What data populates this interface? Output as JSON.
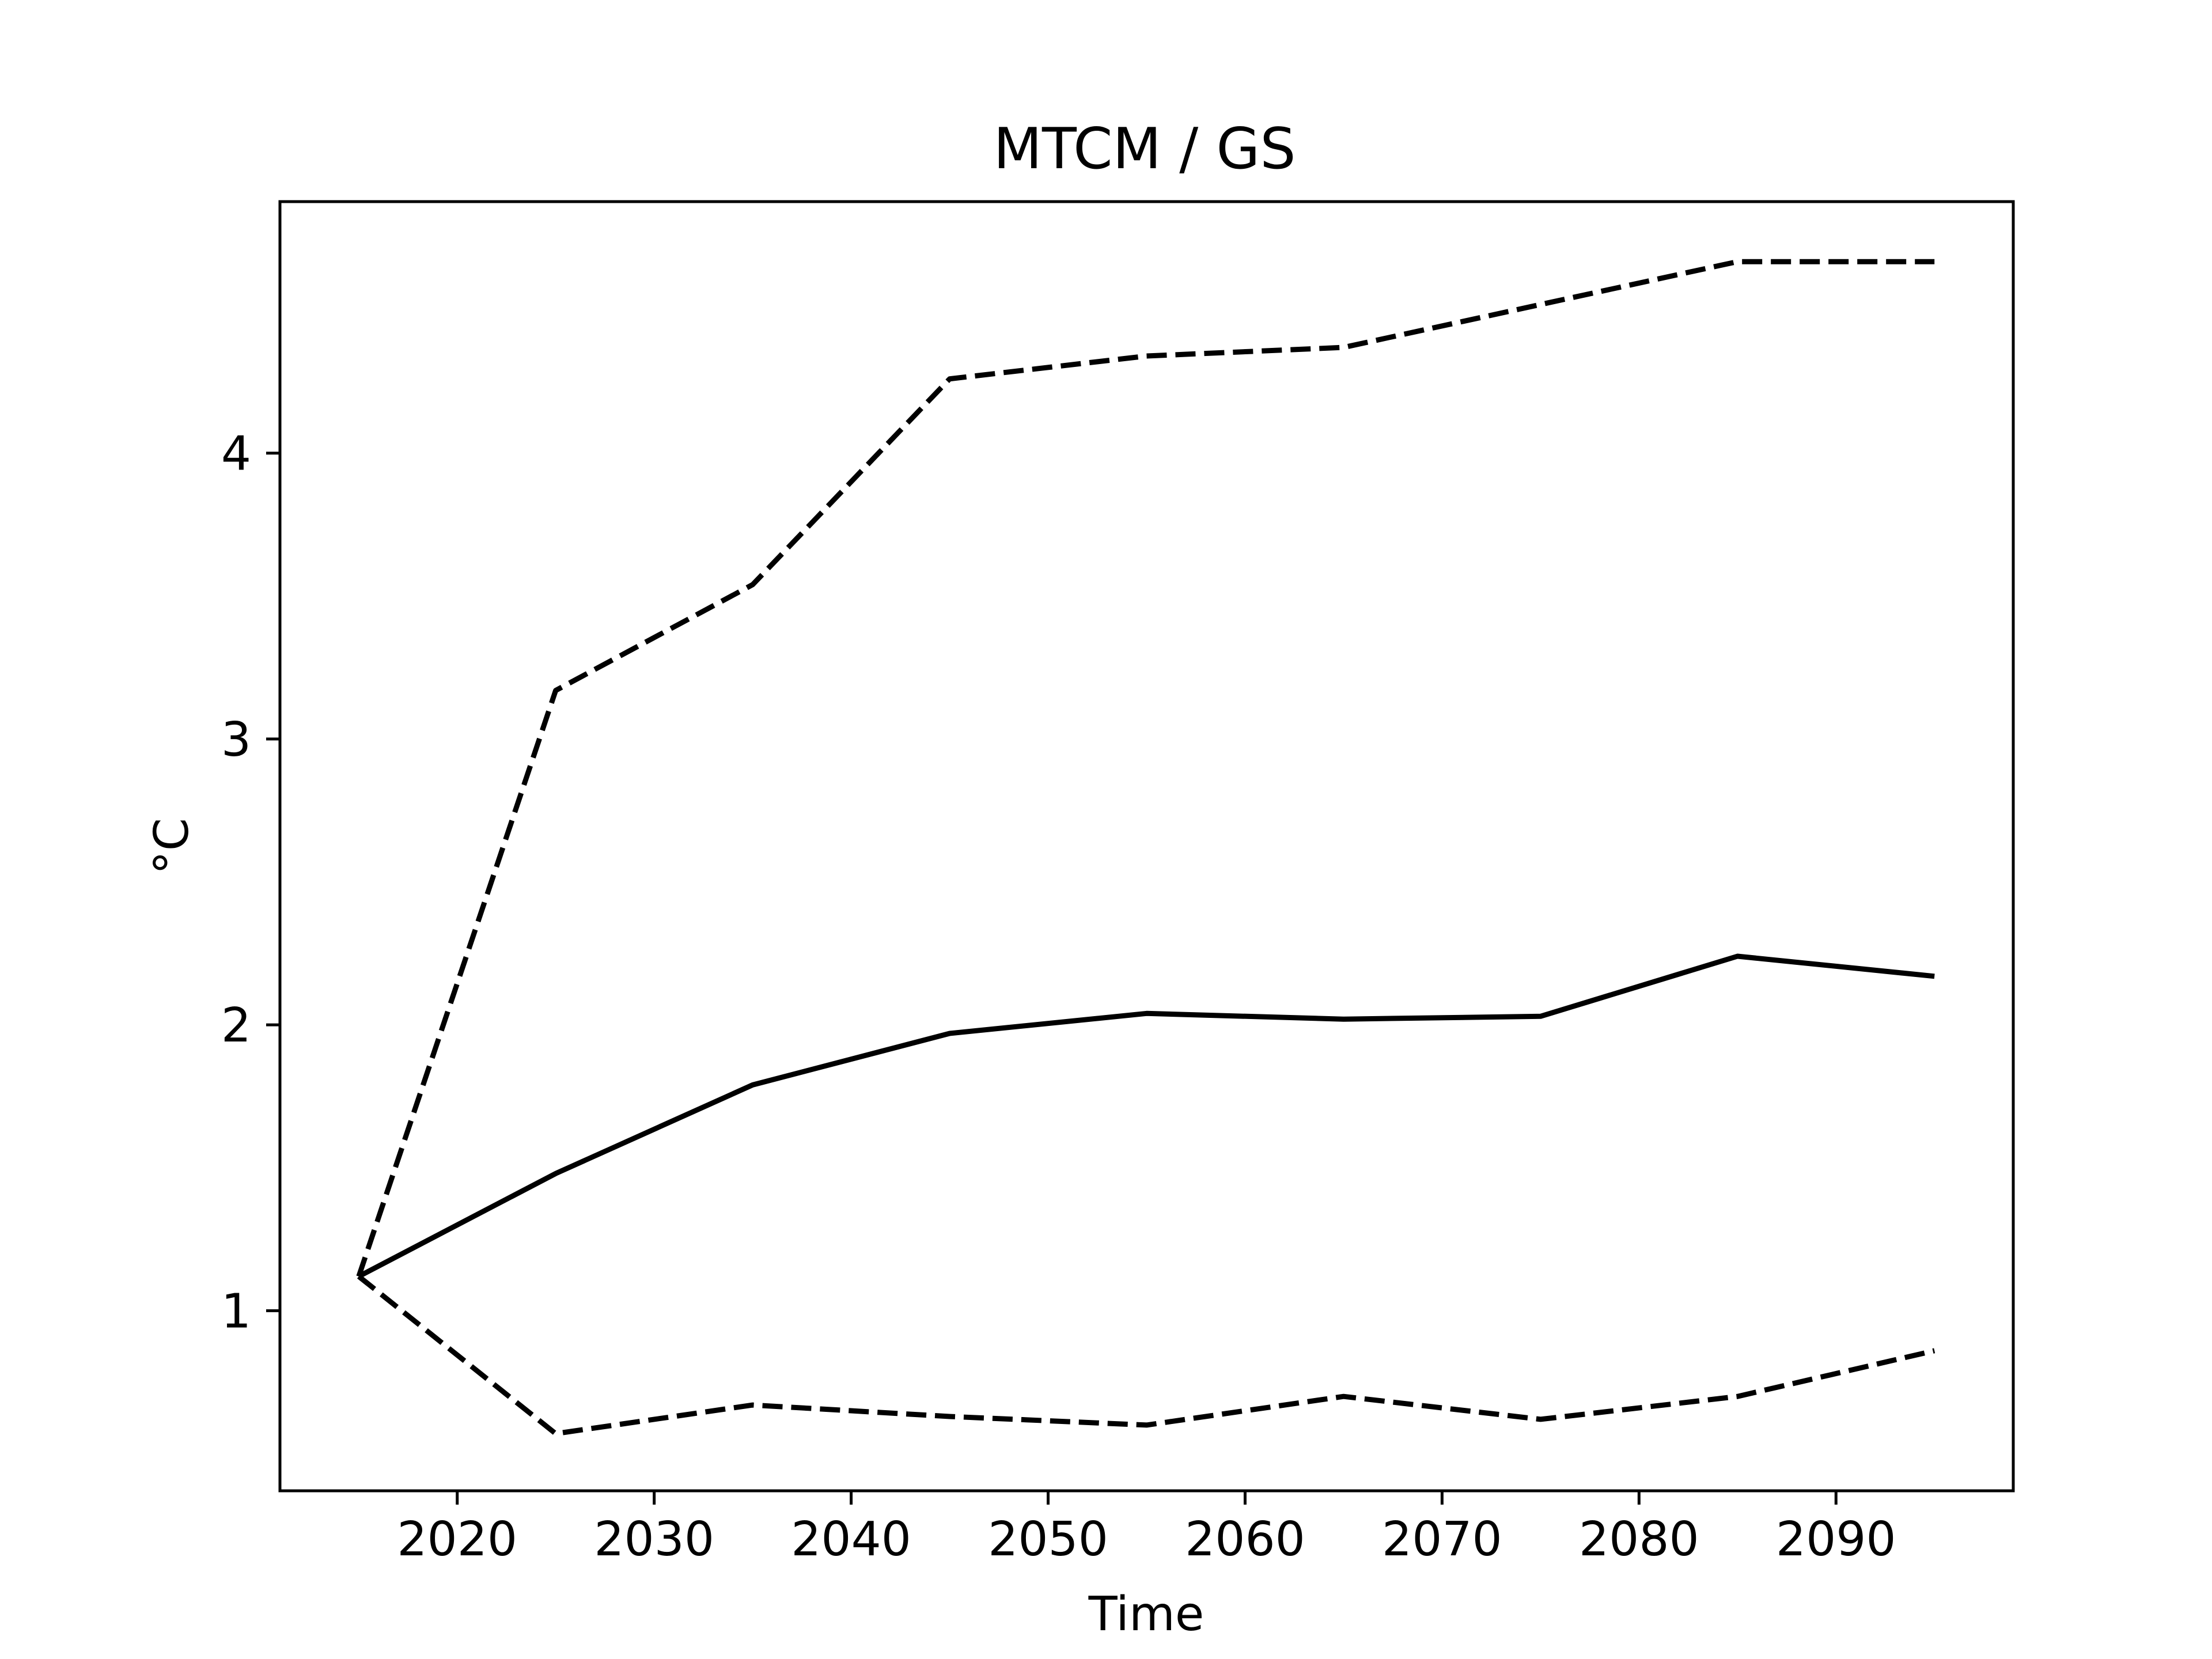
{
  "chart_data": {
    "type": "line",
    "title": "MTCM / GS",
    "xlabel": "Time",
    "ylabel": "°C",
    "xlim": [
      2011,
      2099
    ],
    "ylim": [
      0.37,
      4.88
    ],
    "xticks": [
      2020,
      2030,
      2040,
      2050,
      2060,
      2070,
      2080,
      2090
    ],
    "yticks": [
      1,
      2,
      3,
      4
    ],
    "grid": false,
    "legend": "none",
    "x": [
      2015,
      2025,
      2035,
      2045,
      2055,
      2065,
      2075,
      2085,
      2095
    ],
    "series": [
      {
        "style": "dashed",
        "color": "#000000",
        "values": [
          1.12,
          3.17,
          3.54,
          4.26,
          4.34,
          4.37,
          4.52,
          4.67,
          4.67
        ]
      },
      {
        "style": "solid",
        "color": "#000000",
        "values": [
          1.12,
          1.48,
          1.79,
          1.97,
          2.04,
          2.02,
          2.03,
          2.24,
          2.17
        ]
      },
      {
        "style": "dashed",
        "color": "#000000",
        "values": [
          1.12,
          0.57,
          0.67,
          0.63,
          0.6,
          0.7,
          0.62,
          0.7,
          0.86
        ]
      }
    ]
  }
}
